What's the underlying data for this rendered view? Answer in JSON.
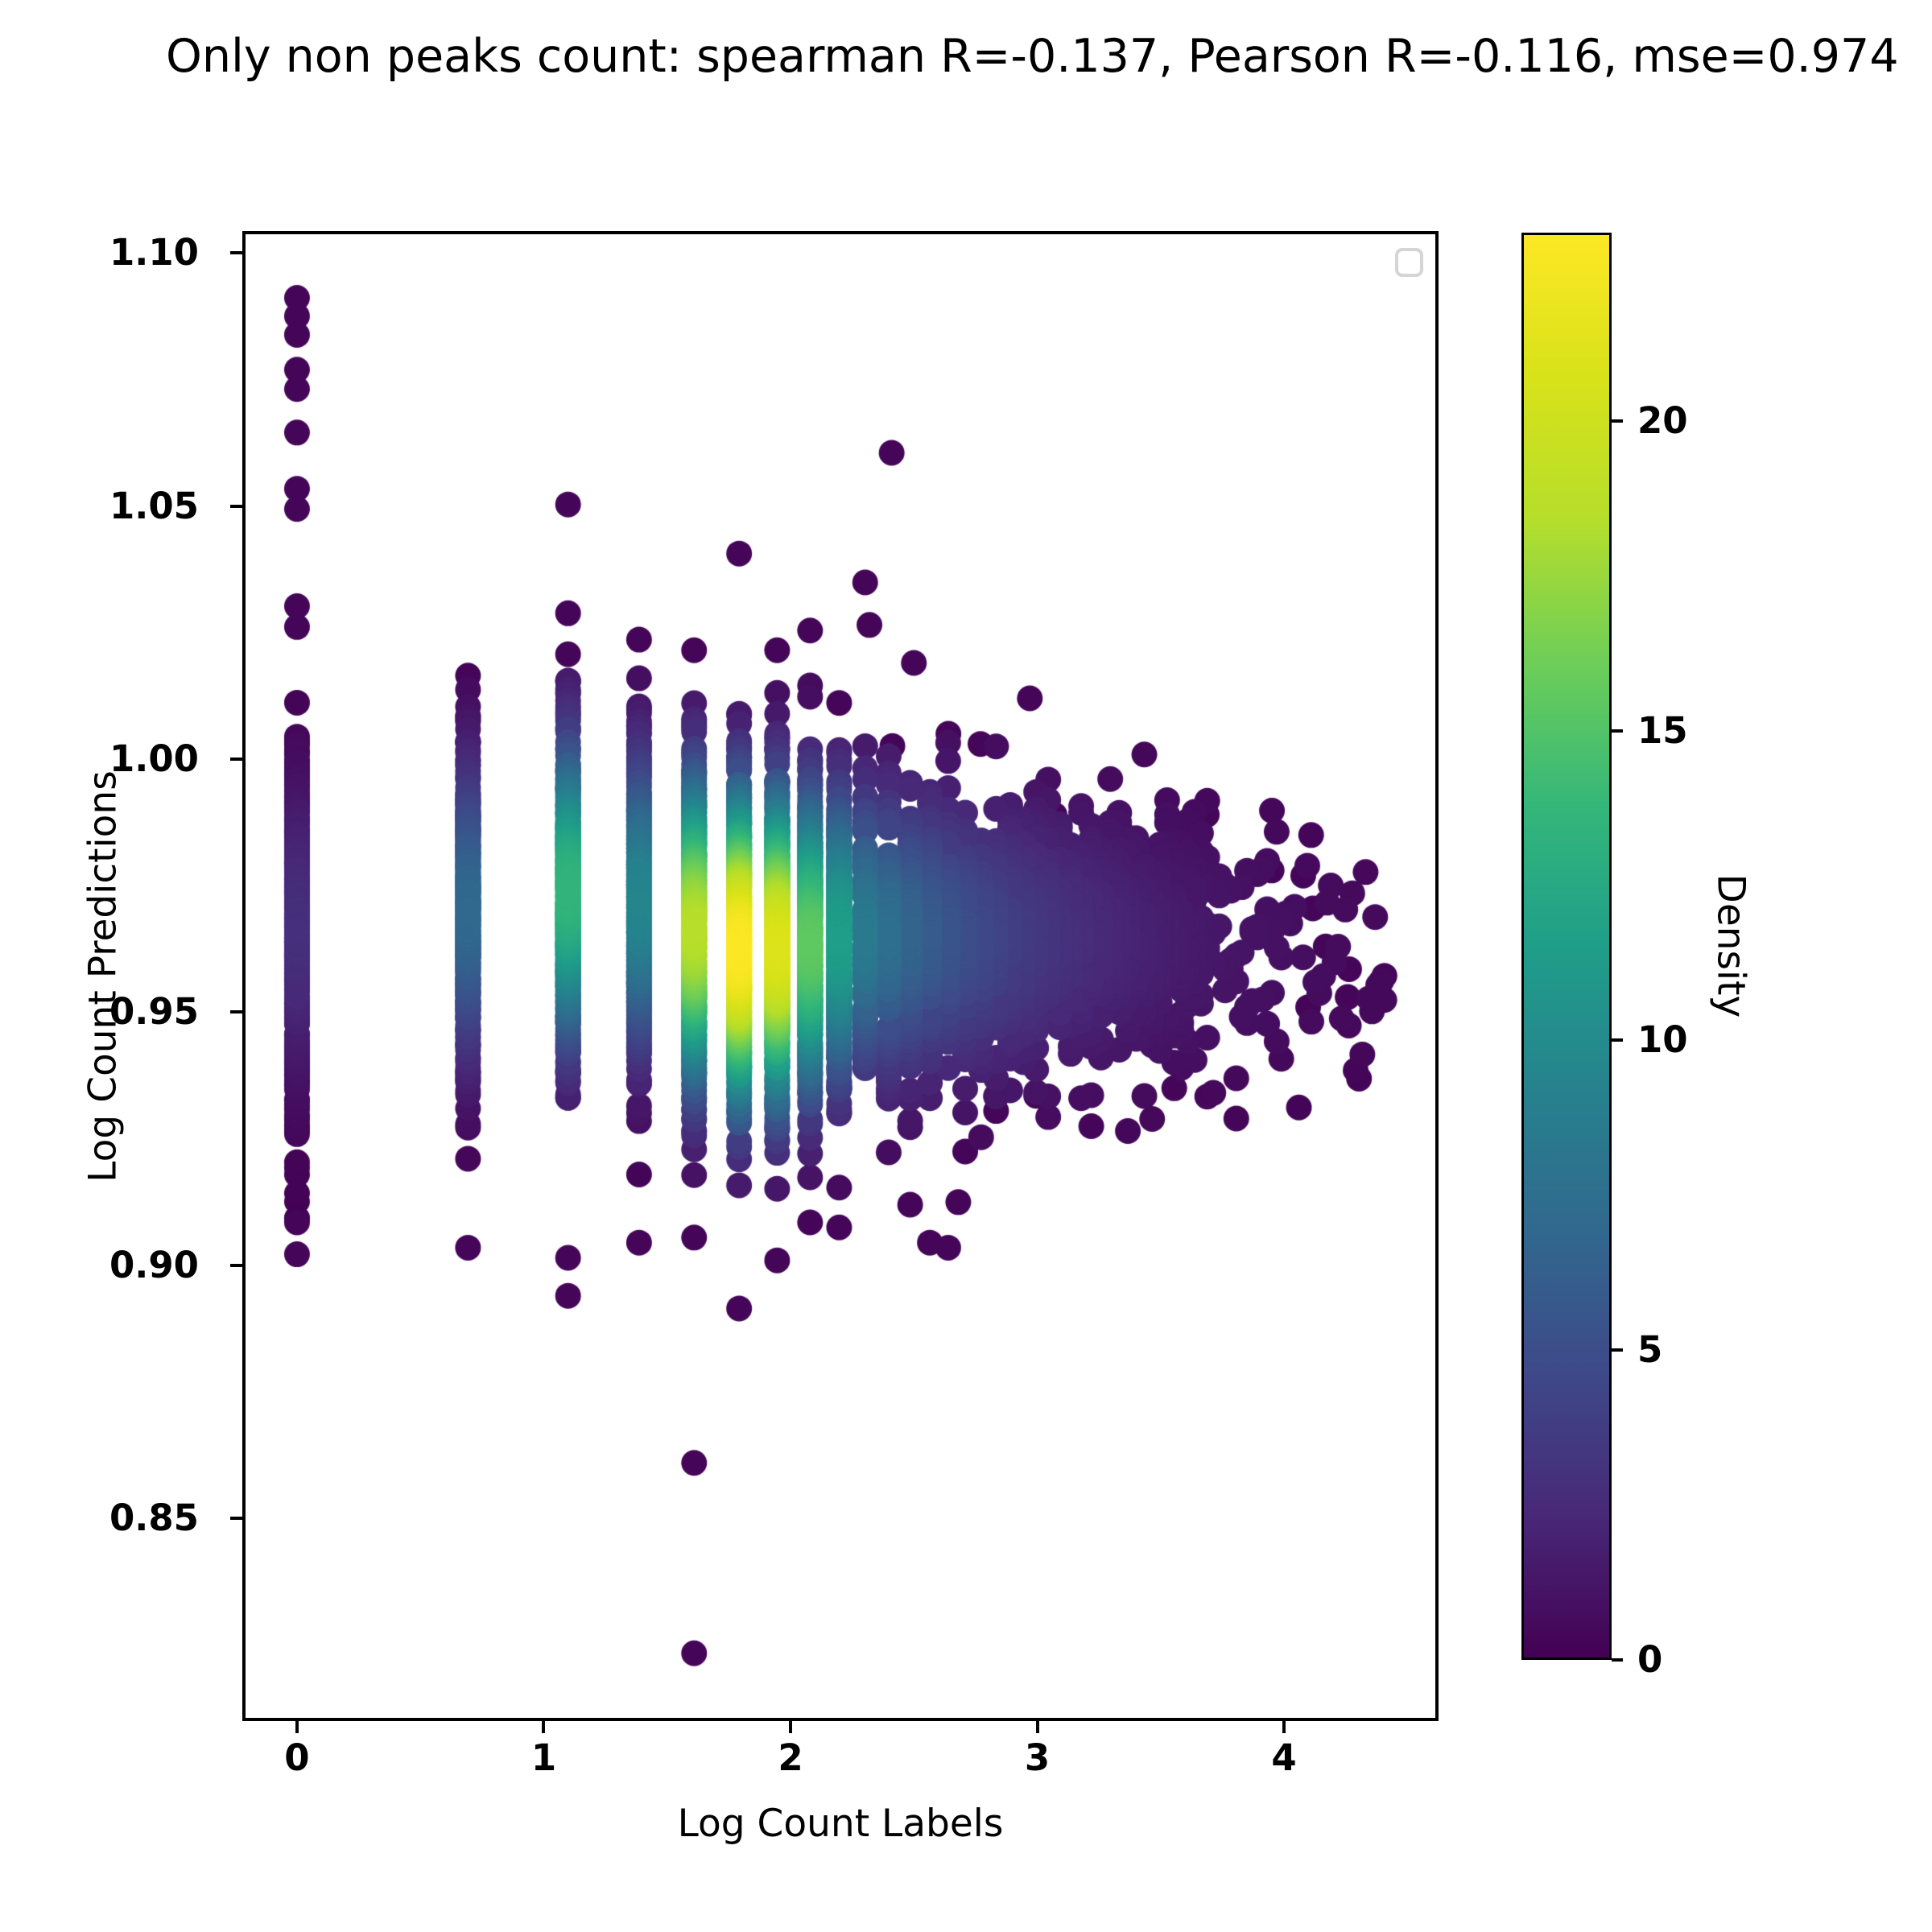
{
  "chart_data": {
    "type": "scatter",
    "title": "Only non peaks count: spearman R=-0.137, Pearson R=-0.116, mse=0.974",
    "xlabel": "Log Count Labels",
    "ylabel": "Log Count Predictions",
    "xlim": [
      -0.2217,
      4.6263
    ],
    "ylim": [
      0.81,
      1.1043
    ],
    "xticks": [
      {
        "v": 0,
        "label": "0"
      },
      {
        "v": 1,
        "label": "1"
      },
      {
        "v": 2,
        "label": "2"
      },
      {
        "v": 3,
        "label": "3"
      },
      {
        "v": 4,
        "label": "4"
      }
    ],
    "yticks": [
      {
        "v": 1.1,
        "label": "1.10"
      },
      {
        "v": 1.05,
        "label": "1.05"
      },
      {
        "v": 1.0,
        "label": "1.00"
      },
      {
        "v": 0.95,
        "label": "0.95"
      },
      {
        "v": 0.9,
        "label": "0.90"
      },
      {
        "v": 0.85,
        "label": "0.85"
      }
    ],
    "grid": false,
    "legend": {
      "position": "upper right",
      "items": [],
      "border_color": "#d5d5d5"
    },
    "colorbar": {
      "label": "Density",
      "vmin": 0,
      "vmax": 23.04,
      "ticks": [
        {
          "v": 0,
          "label": "0"
        },
        {
          "v": 5,
          "label": "5"
        },
        {
          "v": 10,
          "label": "10"
        },
        {
          "v": 15,
          "label": "15"
        },
        {
          "v": 20,
          "label": "20"
        }
      ],
      "colormap": "viridis",
      "viridis_stops": [
        [
          0.0,
          [
            68,
            1,
            84
          ]
        ],
        [
          0.1,
          [
            72,
            40,
            120
          ]
        ],
        [
          0.2,
          [
            62,
            73,
            137
          ]
        ],
        [
          0.3,
          [
            49,
            104,
            142
          ]
        ],
        [
          0.4,
          [
            38,
            130,
            142
          ]
        ],
        [
          0.5,
          [
            31,
            158,
            137
          ]
        ],
        [
          0.6,
          [
            53,
            183,
            121
          ]
        ],
        [
          0.7,
          [
            110,
            206,
            88
          ]
        ],
        [
          0.8,
          [
            181,
            222,
            43
          ]
        ],
        [
          0.9,
          [
            216,
            226,
            25
          ]
        ],
        [
          1.0,
          [
            253,
            231,
            37
          ]
        ]
      ]
    },
    "marker": {
      "radius_px": 16,
      "colormap": "viridis"
    },
    "density_model": {
      "bandwidth_y": 0.02,
      "note": "point color = peak*exp(-(y-dc)^2/(2*bw^2)), densities estimated from colors"
    },
    "columns": [
      {
        "x": 0.0,
        "n": 270,
        "mean": 0.966,
        "sd": 0.0205,
        "lo": 0.902,
        "hi": 1.014,
        "peak": 2.8,
        "dc": 0.966
      },
      {
        "x": 0.6931,
        "n": 310,
        "mean": 0.97,
        "sd": 0.018,
        "lo": 0.9035,
        "hi": 1.0165,
        "peak": 7.0,
        "dc": 0.97
      },
      {
        "x": 1.0986,
        "n": 420,
        "mean": 0.972,
        "sd": 0.0175,
        "lo": 0.9015,
        "hi": 1.0185,
        "peak": 13.5,
        "dc": 0.9735
      },
      {
        "x": 1.3863,
        "n": 360,
        "mean": 0.97,
        "sd": 0.017,
        "lo": 0.9045,
        "hi": 1.016,
        "peak": 9.5,
        "dc": 0.9715
      },
      {
        "x": 1.6094,
        "n": 500,
        "mean": 0.9675,
        "sd": 0.0165,
        "lo": 0.9055,
        "hi": 1.018,
        "peak": 18.5,
        "dc": 0.966
      },
      {
        "x": 1.7918,
        "n": 590,
        "mean": 0.9645,
        "sd": 0.016,
        "lo": 0.9,
        "hi": 1.0105,
        "peak": 23.0,
        "dc": 0.9625
      },
      {
        "x": 1.9459,
        "n": 550,
        "mean": 0.964,
        "sd": 0.0155,
        "lo": 0.901,
        "hi": 1.017,
        "peak": 21.0,
        "dc": 0.9625
      },
      {
        "x": 2.0794,
        "n": 430,
        "mean": 0.9645,
        "sd": 0.0152,
        "lo": 0.9065,
        "hi": 1.015,
        "peak": 15.5,
        "dc": 0.9635
      },
      {
        "x": 2.1972,
        "n": 350,
        "mean": 0.965,
        "sd": 0.015,
        "lo": 0.9075,
        "hi": 1.012,
        "peak": 11.5,
        "dc": 0.9645
      }
    ],
    "cloud": {
      "comment": "continuous blob for log counts k=10..82, x=ln(k)",
      "k_range": [
        10,
        82
      ],
      "n_rule": {
        "base": 2600,
        "exp": 1.4,
        "mid_start": 41,
        "mid_n": 3,
        "far_start": 55,
        "far_n": 1
      },
      "mean": {
        "at_ln2_3": 0.9655,
        "slope_per_ln": -0.0015
      },
      "sd": {
        "at_ln2_3": 0.015,
        "slope_per_ln": -0.002
      },
      "peak": {
        "at_ln2_3": 8.5,
        "tau_ln": 0.75
      }
    },
    "outliers": [
      [
        0.0,
        1.0911
      ],
      [
        0.0,
        1.0875
      ],
      [
        0.0,
        1.0838
      ],
      [
        0.0,
        1.0769
      ],
      [
        0.0,
        1.0731
      ],
      [
        0.0,
        1.0645
      ],
      [
        0.0,
        1.0534
      ],
      [
        0.0,
        1.0494
      ],
      [
        0.0,
        1.0302
      ],
      [
        0.0,
        1.0261
      ],
      [
        0.0,
        0.9085
      ],
      [
        0.0,
        0.9022
      ],
      [
        0.6931,
        1.0165
      ],
      [
        0.6931,
        0.9035
      ],
      [
        1.0986,
        1.0503
      ],
      [
        1.0986,
        1.0288
      ],
      [
        1.0986,
        1.0207
      ],
      [
        1.0986,
        0.9015
      ],
      [
        1.0986,
        0.894
      ],
      [
        1.3863,
        1.0236
      ],
      [
        1.3863,
        0.9045
      ],
      [
        1.6094,
        1.0215
      ],
      [
        1.6094,
        0.9055
      ],
      [
        1.6094,
        0.861
      ],
      [
        1.6094,
        0.8234
      ],
      [
        1.7918,
        1.0406
      ],
      [
        1.7918,
        1.0088
      ],
      [
        1.7918,
        0.8915
      ],
      [
        1.9459,
        1.0215
      ],
      [
        1.9459,
        0.901
      ],
      [
        2.0794,
        1.0254
      ],
      [
        2.0794,
        0.9085
      ],
      [
        2.1972,
        1.0111
      ],
      [
        2.1972,
        0.9075
      ],
      [
        2.3026,
        1.0349
      ],
      [
        2.32,
        1.0265
      ],
      [
        2.41,
        1.0605
      ],
      [
        2.5,
        1.019
      ],
      [
        2.413,
        1.0026
      ],
      [
        2.64,
        1.005
      ],
      [
        2.77,
        1.003
      ],
      [
        2.97,
        1.012
      ],
      [
        3.07,
        0.989
      ],
      [
        2.4849,
        0.912
      ],
      [
        2.5649,
        0.9045
      ],
      [
        2.6391,
        0.9035
      ],
      [
        2.68,
        0.9125
      ],
      [
        2.7081,
        0.9225
      ],
      [
        2.8332,
        0.9305
      ],
      [
        2.9957,
        0.9335
      ],
      [
        3.2189,
        0.9275
      ],
      [
        3.2581,
        0.9445
      ],
      [
        3.5553,
        0.935
      ],
      [
        3.8067,
        0.929
      ],
      [
        3.687,
        0.989
      ],
      [
        3.95,
        0.978
      ],
      [
        4.078,
        0.977
      ],
      [
        4.11,
        0.985
      ],
      [
        4.117,
        0.9705
      ],
      [
        4.098,
        0.951
      ],
      [
        4.169,
        0.963
      ],
      [
        4.258,
        0.953
      ],
      [
        4.264,
        0.9585
      ],
      [
        4.407,
        0.9572
      ]
    ]
  },
  "colors": {
    "background": "#ffffff",
    "spine": "#000000",
    "text": "#000000"
  }
}
